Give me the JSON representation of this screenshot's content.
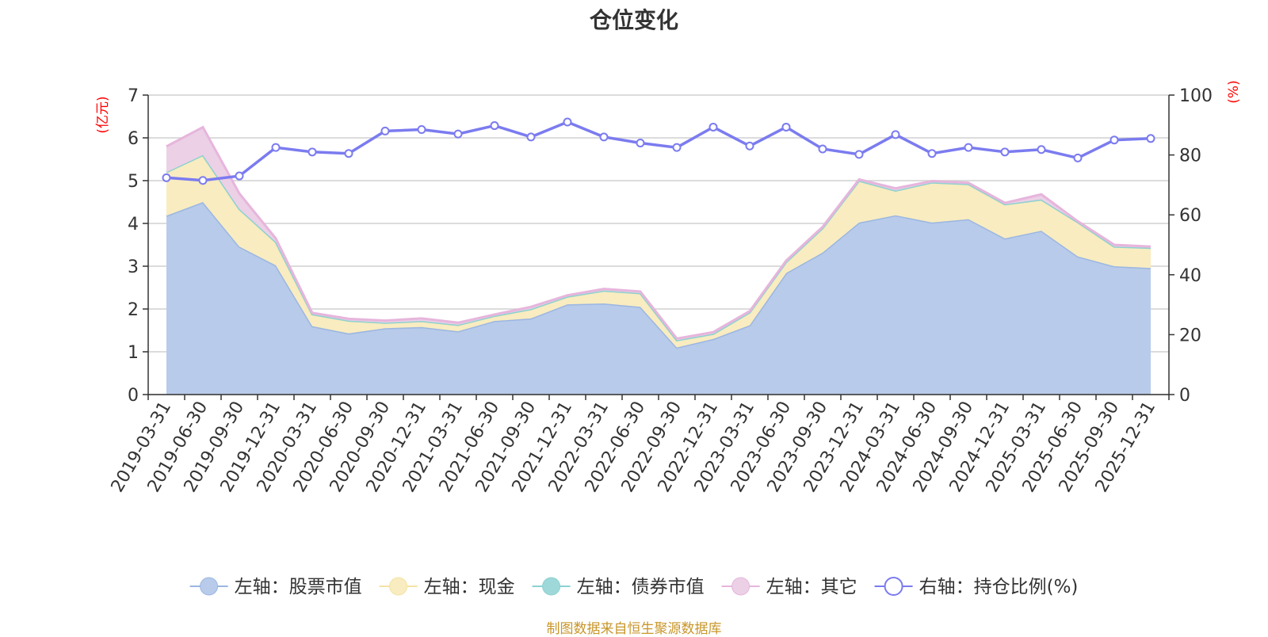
{
  "chart_data": {
    "type": "area",
    "title": "仓位变化",
    "left_axis_unit": "(亿元)",
    "right_axis_unit": "(%)",
    "categories": [
      "2019-03-31",
      "2019-06-30",
      "2019-09-30",
      "2019-12-31",
      "2020-03-31",
      "2020-06-30",
      "2020-09-30",
      "2020-12-31",
      "2021-03-31",
      "2021-06-30",
      "2021-09-30",
      "2021-12-31",
      "2022-03-31",
      "2022-06-30",
      "2022-09-30",
      "2022-12-31",
      "2023-03-31",
      "2023-06-30",
      "2023-09-30",
      "2023-12-31",
      "2024-03-31",
      "2024-06-30",
      "2024-09-30",
      "2024-12-31",
      "2025-03-31",
      "2025-06-30",
      "2025-09-30",
      "2025-12-31"
    ],
    "left_ylim": [
      0,
      7
    ],
    "left_yticks": [
      "0",
      "1",
      "2",
      "3",
      "4",
      "5",
      "6",
      "7"
    ],
    "right_ylim": [
      0,
      100
    ],
    "right_yticks": [
      "0",
      "20",
      "40",
      "60",
      "80",
      "100"
    ],
    "grid": true,
    "legend_position": "bottom",
    "stacked_series": [
      {
        "name": "左轴：股票市值",
        "axis": "left",
        "fill": "#b8cbea",
        "line": "#9bb6e2",
        "values": [
          4.18,
          4.5,
          3.46,
          3.02,
          1.6,
          1.43,
          1.55,
          1.58,
          1.48,
          1.72,
          1.78,
          2.11,
          2.13,
          2.05,
          1.1,
          1.3,
          1.62,
          2.84,
          3.32,
          4.02,
          4.19,
          4.02,
          4.1,
          3.65,
          3.83,
          3.23,
          3.0,
          2.96
        ]
      },
      {
        "name": "左轴：现金",
        "axis": "left",
        "fill": "#f8ecc0",
        "line": "#f4e3a3",
        "values": [
          1.02,
          1.1,
          0.88,
          0.55,
          0.28,
          0.3,
          0.13,
          0.14,
          0.15,
          0.12,
          0.22,
          0.18,
          0.3,
          0.32,
          0.17,
          0.12,
          0.3,
          0.26,
          0.57,
          0.98,
          0.58,
          0.94,
          0.82,
          0.8,
          0.73,
          0.8,
          0.46,
          0.47
        ]
      },
      {
        "name": "左轴：债券市值",
        "axis": "left",
        "fill": "#9fd8d8",
        "line": "#8dd1d1",
        "values": [
          0,
          0,
          0,
          0,
          0,
          0,
          0,
          0,
          0,
          0,
          0,
          0,
          0,
          0,
          0,
          0,
          0,
          0,
          0,
          0,
          0,
          0,
          0,
          0,
          0,
          0,
          0,
          0
        ]
      },
      {
        "name": "左轴：其它",
        "axis": "left",
        "fill": "#ecd0e6",
        "line": "#e6b5dc",
        "values": [
          0.6,
          0.65,
          0.36,
          0.08,
          0.03,
          0.04,
          0.05,
          0.06,
          0.05,
          0.03,
          0.05,
          0.03,
          0.04,
          0.04,
          0.04,
          0.04,
          0.03,
          0.03,
          0.03,
          0.03,
          0.05,
          0.03,
          0.03,
          0.03,
          0.12,
          0.02,
          0.04,
          0.03
        ]
      }
    ],
    "line_series": {
      "name": "右轴：持仓比例(%)",
      "axis": "right",
      "color": "#7b7bf0",
      "values": [
        72.4,
        71.5,
        73.0,
        82.5,
        81.0,
        80.5,
        88.0,
        88.5,
        87.0,
        89.8,
        86.0,
        91.0,
        86.0,
        84.0,
        82.5,
        89.3,
        83.0,
        89.3,
        82.0,
        80.2,
        86.8,
        80.5,
        82.5,
        81.0,
        81.8,
        79.0,
        85.0,
        85.5
      ]
    }
  },
  "source_note": "制图数据来自恒生聚源数据库"
}
